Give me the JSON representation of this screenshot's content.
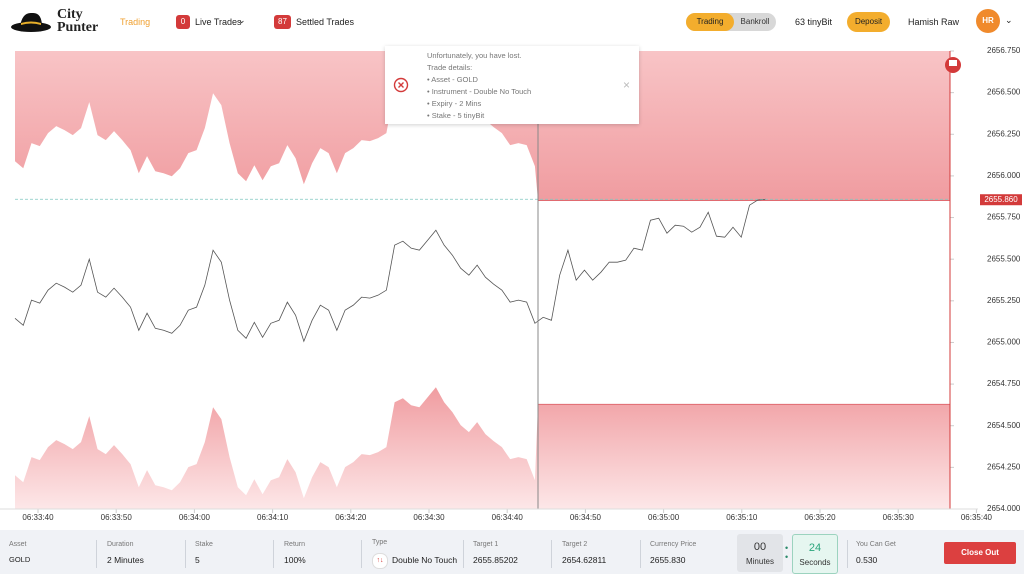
{
  "header": {
    "logo_line1": "City",
    "logo_line2": "Punter",
    "nav_trading": "Trading",
    "live_count": "0",
    "live_label": "Live Trades",
    "settled_count": "87",
    "settled_label": "Settled Trades",
    "toggle": [
      "Trading",
      "Bankroll"
    ],
    "balance": "63 tinyBit",
    "deposit": "Deposit",
    "user": "Hamish Raw",
    "avatar": "HR"
  },
  "notification": {
    "lines": [
      "Unfortunately, you have lost.",
      "Trade details:",
      "• Asset - GOLD",
      "• Instrument - Double No Touch",
      "• Expiry - 2 Mins",
      "• Stake - 5 tinyBit"
    ]
  },
  "chart": {
    "ylim": [
      2654.0,
      2656.75
    ],
    "yticks": [
      {
        "value": 2656.75,
        "label": "2656.750"
      },
      {
        "value": 2656.5,
        "label": "2656.500"
      },
      {
        "value": 2656.25,
        "label": "2656.250"
      },
      {
        "value": 2656.0,
        "label": "2656.000"
      },
      {
        "value": 2655.75,
        "label": "2655.750"
      },
      {
        "value": 2655.5,
        "label": "2655.500"
      },
      {
        "value": 2655.25,
        "label": "2655.250"
      },
      {
        "value": 2655.0,
        "label": "2655.000"
      },
      {
        "value": 2654.75,
        "label": "2654.750"
      },
      {
        "value": 2654.5,
        "label": "2654.500"
      },
      {
        "value": 2654.25,
        "label": "2654.250"
      },
      {
        "value": 2654.0,
        "label": "2654.000"
      }
    ],
    "xticks": [
      "06:33:40",
      "06:33:50",
      "06:34:00",
      "06:34:10",
      "06:34:20",
      "06:34:30",
      "06:34:40",
      "06:34:50",
      "06:35:00",
      "06:35:10",
      "06:35:20",
      "06:35:30",
      "06:35:40"
    ],
    "current_price": {
      "value": 2655.86,
      "label": "2655.860"
    },
    "upper_barrier": 2655.85202,
    "lower_barrier": 2654.62811,
    "price": {
      "values": [
        2655.145,
        2655.103,
        2655.254,
        2655.236,
        2655.314,
        2655.356,
        2655.332,
        2655.302,
        2655.344,
        2655.5,
        2655.302,
        2655.272,
        2655.326,
        2655.272,
        2655.212,
        2655.073,
        2655.176,
        2655.085,
        2655.073,
        2655.055,
        2655.103,
        2655.194,
        2655.212,
        2655.344,
        2655.554,
        2655.482,
        2655.254,
        2655.073,
        2655.025,
        2655.121,
        2655.031,
        2655.115,
        2655.133,
        2655.242,
        2655.163,
        2655.007,
        2655.133,
        2655.224,
        2655.194,
        2655.073,
        2655.194,
        2655.224,
        2655.272,
        2655.266,
        2655.284,
        2655.314,
        2655.584,
        2655.608,
        2655.566,
        2655.554,
        2655.614,
        2655.674,
        2655.584,
        2655.524,
        2655.446,
        2655.404,
        2655.464,
        2655.392,
        2655.35,
        2655.314,
        2655.242,
        2655.254,
        2655.242,
        2655.115,
        2655.151,
        2655.133,
        2655.404,
        2655.554,
        2655.374,
        2655.434,
        2655.374,
        2655.422,
        2655.482,
        2655.482,
        2655.494,
        2655.566,
        2655.554,
        2655.734,
        2655.746,
        2655.656,
        2655.704,
        2655.698,
        2655.662,
        2655.692,
        2655.782,
        2655.638,
        2655.632,
        2655.692,
        2655.632,
        2655.824,
        2655.855,
        2655.86
      ]
    }
  },
  "footer": {
    "asset": {
      "label": "Asset",
      "value": "GOLD"
    },
    "duration": {
      "label": "Duration",
      "value": "2 Minutes"
    },
    "stake": {
      "label": "Stake",
      "value": "5"
    },
    "return": {
      "label": "Return",
      "value": "100%"
    },
    "type": {
      "label": "Type",
      "value": "Double No Touch"
    },
    "target1": {
      "label": "Target 1"
    },
    "target2": {
      "label": "Target 2"
    },
    "currency_price": {
      "label": "Currency Price",
      "value": "2655.830"
    },
    "minutes": {
      "value": "00",
      "label": "Minutes"
    },
    "seconds": {
      "value": "24",
      "label": "Seconds"
    },
    "can_get": {
      "label": "You Can Get",
      "value": "0.530"
    },
    "close_out": "Close Out"
  }
}
